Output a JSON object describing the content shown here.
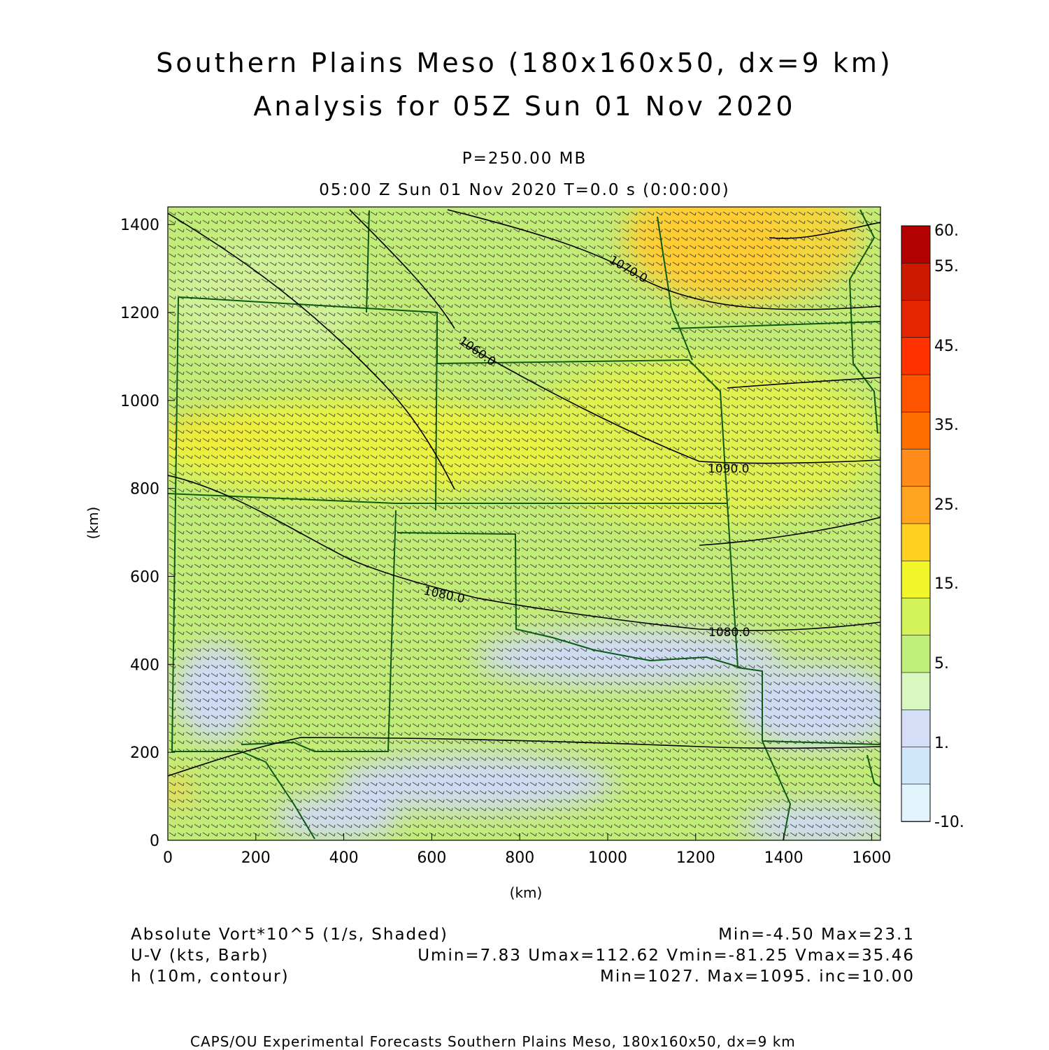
{
  "header": {
    "title_line1": "Southern Plains Meso (180x160x50, dx=9 km)",
    "title_line2": "Analysis for 05Z Sun 01 Nov 2020",
    "pressure": "P=250.00 MB",
    "time_line": "05:00 Z Sun 01 Nov 2020    T=0.0 s (0:00:00)"
  },
  "axes": {
    "x_label": "(km)",
    "y_label": "(km)",
    "x_ticks": [
      "0",
      "200",
      "400",
      "600",
      "800",
      "1000",
      "1200",
      "1400",
      "1600"
    ],
    "y_ticks": [
      "0",
      "200",
      "400",
      "600",
      "800",
      "1000",
      "1200",
      "1400"
    ],
    "x_range_km": [
      0,
      1620
    ],
    "y_range_km": [
      0,
      1440
    ]
  },
  "colorbar": {
    "labels": [
      "60.",
      "55.",
      "45.",
      "35.",
      "25.",
      "15.",
      "5.",
      "1.",
      "-10."
    ],
    "colors": [
      "#b30000",
      "#cc1a00",
      "#e62600",
      "#ff3300",
      "#ff5500",
      "#ff6f00",
      "#ff8c1a",
      "#ffa520",
      "#ffd020",
      "#f2f52a",
      "#d4f25a",
      "#bff07a",
      "#d8f8c0",
      "#d5def6",
      "#cfe6fb",
      "#e2f5fc"
    ]
  },
  "legend": {
    "field1_name": "Absolute Vort*10^5 (1/s, Shaded)",
    "field1_stats": "Min=-4.50 Max=23.1",
    "field2_name": "U-V (kts, Barb)",
    "field2_stats": "Umin=7.83 Umax=112.62 Vmin=-81.25 Vmax=35.46",
    "field3_name": "h (10m, contour)",
    "field3_stats": "Min=1027. Max=1095. inc=10.00"
  },
  "contour_labels": [
    "1070.0",
    "1060.0",
    "1090.0",
    "1080.0",
    "1080.0"
  ],
  "footer": "CAPS/OU Experimental Forecasts  Southern Plains Meso, 180x160x50, dx=9 km"
}
